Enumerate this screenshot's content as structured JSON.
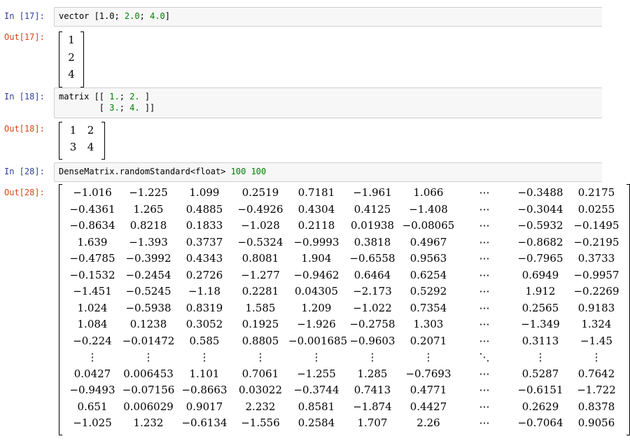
{
  "cells": [
    {
      "prompt_in": "In [17]:",
      "prompt_out": "Out[17]:",
      "code": [
        [
          {
            "t": "vector [1.0; "
          },
          {
            "t": "2.0",
            "n": true
          },
          {
            "t": "; "
          },
          {
            "t": "4.0",
            "n": true
          },
          {
            "t": "]"
          }
        ]
      ],
      "output": [
        [
          "1"
        ],
        [
          "2"
        ],
        [
          "4"
        ]
      ]
    },
    {
      "prompt_in": "In [18]:",
      "prompt_out": "Out[18]:",
      "code": [
        [
          {
            "t": "matrix [[ "
          },
          {
            "t": "1.",
            "n": true
          },
          {
            "t": "; "
          },
          {
            "t": "2.",
            "n": true
          },
          {
            "t": " ]"
          }
        ],
        [
          {
            "t": "        [ "
          },
          {
            "t": "3.",
            "n": true
          },
          {
            "t": "; "
          },
          {
            "t": "4.",
            "n": true
          },
          {
            "t": " ]]"
          }
        ]
      ],
      "output": [
        [
          "1",
          "2"
        ],
        [
          "3",
          "4"
        ]
      ]
    },
    {
      "prompt_in": "In [28]:",
      "prompt_out": "Out[28]:",
      "code": [
        [
          {
            "t": "DenseMatrix.randomStandard<float> "
          },
          {
            "t": "100",
            "n": true
          },
          {
            "t": " "
          },
          {
            "t": "100",
            "n": true
          }
        ]
      ],
      "output": [
        [
          "−1.016",
          "−1.225",
          "1.099",
          "0.2519",
          "0.7181",
          "−1.961",
          "1.066",
          "⋯",
          "−0.3488",
          "0.2175"
        ],
        [
          "−0.4361",
          "1.265",
          "0.4885",
          "−0.4926",
          "0.4304",
          "0.4125",
          "−1.408",
          "⋯",
          "−0.3044",
          "0.0255"
        ],
        [
          "−0.8634",
          "0.8218",
          "0.1833",
          "−1.028",
          "0.2118",
          "0.01938",
          "−0.08065",
          "⋯",
          "−0.5932",
          "−0.1495"
        ],
        [
          "1.639",
          "−1.393",
          "0.3737",
          "−0.5324",
          "−0.9993",
          "0.3818",
          "0.4967",
          "⋯",
          "−0.8682",
          "−0.2195"
        ],
        [
          "−0.4785",
          "−0.3992",
          "0.4343",
          "0.8081",
          "1.904",
          "−0.6558",
          "0.9563",
          "⋯",
          "−0.7965",
          "0.3733"
        ],
        [
          "−0.1532",
          "−0.2454",
          "0.2726",
          "−1.277",
          "−0.9462",
          "0.6464",
          "0.6254",
          "⋯",
          "0.6949",
          "−0.9957"
        ],
        [
          "−1.451",
          "−0.5245",
          "−1.18",
          "0.2281",
          "0.04305",
          "−2.173",
          "0.5292",
          "⋯",
          "1.912",
          "−0.2269"
        ],
        [
          "1.024",
          "−0.5938",
          "0.8319",
          "1.585",
          "1.209",
          "−1.022",
          "0.7354",
          "⋯",
          "0.2565",
          "0.9183"
        ],
        [
          "1.084",
          "0.1238",
          "0.3052",
          "0.1925",
          "−1.926",
          "−0.2758",
          "1.303",
          "⋯",
          "−1.349",
          "1.324"
        ],
        [
          "−0.224",
          "−0.01472",
          "0.585",
          "0.8805",
          "−0.001685",
          "−0.9603",
          "0.2071",
          "⋯",
          "0.3113",
          "−1.45"
        ],
        [
          "⋮",
          "⋮",
          "⋮",
          "⋮",
          "⋮",
          "⋮",
          "⋮",
          "⋱",
          "⋮",
          "⋮"
        ],
        [
          "0.0427",
          "0.006453",
          "1.101",
          "0.7061",
          "−1.255",
          "1.285",
          "−0.7693",
          "⋯",
          "0.5287",
          "0.7642"
        ],
        [
          "−0.9493",
          "−0.07156",
          "−0.8663",
          "0.03022",
          "−0.3744",
          "0.7413",
          "0.4771",
          "⋯",
          "−0.6151",
          "−1.722"
        ],
        [
          "0.651",
          "0.006029",
          "0.9017",
          "2.232",
          "0.8581",
          "−1.874",
          "0.4427",
          "⋯",
          "0.2629",
          "0.8378"
        ],
        [
          "−1.025",
          "1.232",
          "−0.6134",
          "−1.556",
          "0.2584",
          "1.707",
          "2.26",
          "⋯",
          "−0.7064",
          "0.9056"
        ]
      ]
    }
  ]
}
